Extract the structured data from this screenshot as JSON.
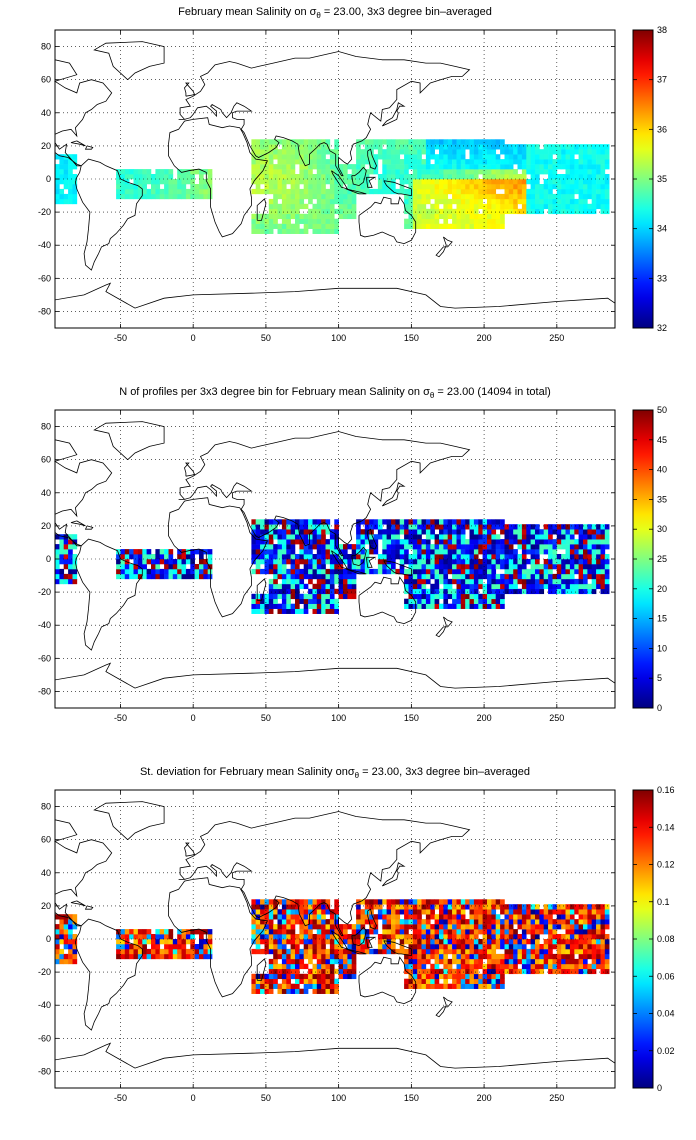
{
  "panels": [
    {
      "title_pre": "February mean Salinity on σ",
      "title_sub": "θ",
      "title_post": " = 23.00, 3x3 degree bin–averaged",
      "colorbar": {
        "min": 32,
        "max": 38,
        "ticks": [
          "38",
          "37",
          "36",
          "35",
          "34",
          "33",
          "32"
        ]
      }
    },
    {
      "title_pre": "N of profiles per 3x3 degree bin for February mean Salinity on σ",
      "title_sub": "θ",
      "title_post": " = 23.00 (14094 in total)",
      "colorbar": {
        "min": 0,
        "max": 50,
        "ticks": [
          "50",
          "45",
          "40",
          "35",
          "30",
          "25",
          "20",
          "15",
          "10",
          "5",
          "0"
        ]
      }
    },
    {
      "title_pre": "St. deviation for February mean Salinity onσ",
      "title_sub": "θ",
      "title_post": " = 23.00, 3x3 degree bin–averaged",
      "colorbar": {
        "min": 0,
        "max": 0.16,
        "ticks": [
          "0.16",
          "0.14",
          "0.12",
          "0.1",
          "0.08",
          "0.06",
          "0.04",
          "0.02",
          "0"
        ]
      }
    }
  ],
  "axes": {
    "x_ticks": [
      "-50",
      "0",
      "50",
      "100",
      "150",
      "200",
      "250"
    ],
    "y_ticks": [
      "80",
      "60",
      "40",
      "20",
      "0",
      "-20",
      "-40",
      "-60",
      "-80"
    ],
    "lon_range": [
      -95,
      290
    ],
    "lat_range": [
      -90,
      90
    ],
    "grid": "dotted"
  },
  "colormap": "jet"
}
